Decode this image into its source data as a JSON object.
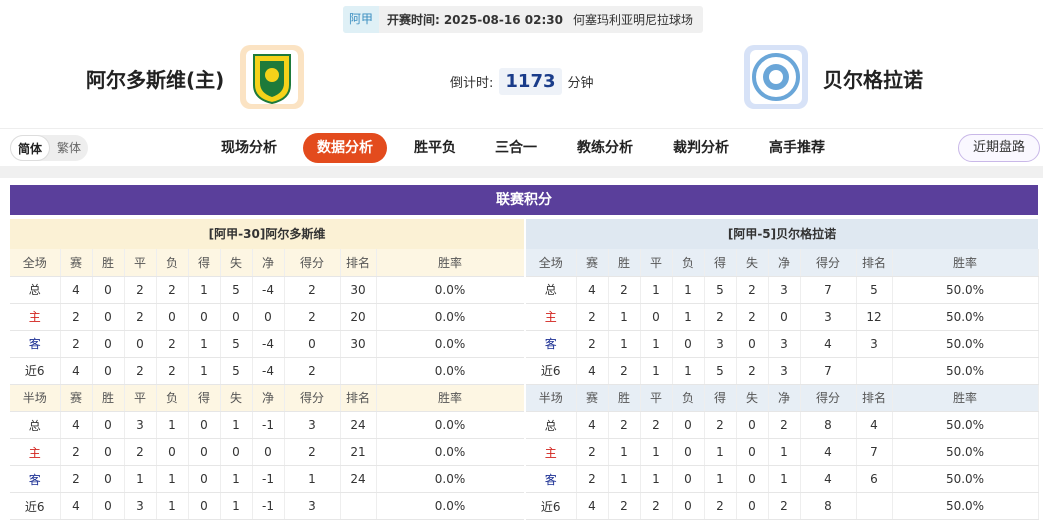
{
  "match": {
    "league": "阿甲",
    "time_label": "开赛时间:",
    "time": "2025-08-16 02:30",
    "venue": "何塞玛利亚明尼拉球场"
  },
  "home": {
    "name": "阿尔多斯维(主)"
  },
  "away": {
    "name": "贝尔格拉诺"
  },
  "countdown": {
    "label": "倒计时:",
    "value": "1173",
    "unit": "分钟"
  },
  "lang": [
    "简体",
    "繁体"
  ],
  "tabs": [
    "现场分析",
    "数据分析",
    "胜平负",
    "三合一",
    "教练分析",
    "裁判分析",
    "高手推荐"
  ],
  "active_tab": 1,
  "recent_button": "近期盘路",
  "standings": {
    "title": "联赛积分",
    "teams": [
      {
        "title": "[阿甲-30]阿尔多斯维",
        "tables": [
          {
            "header": [
              "全场",
              "赛",
              "胜",
              "平",
              "负",
              "得",
              "失",
              "净",
              "得分",
              "排名",
              "胜率"
            ],
            "rows": [
              [
                "总",
                4,
                0,
                2,
                2,
                1,
                5,
                -4,
                2,
                30,
                "0.0%"
              ],
              [
                "主",
                2,
                0,
                2,
                0,
                0,
                0,
                0,
                2,
                20,
                "0.0%"
              ],
              [
                "客",
                2,
                0,
                0,
                2,
                1,
                5,
                -4,
                0,
                30,
                "0.0%"
              ],
              [
                "近6",
                4,
                0,
                2,
                2,
                1,
                5,
                -4,
                2,
                null,
                "0.0%"
              ]
            ]
          },
          {
            "header": [
              "半场",
              "赛",
              "胜",
              "平",
              "负",
              "得",
              "失",
              "净",
              "得分",
              "排名",
              "胜率"
            ],
            "rows": [
              [
                "总",
                4,
                0,
                3,
                1,
                0,
                1,
                -1,
                3,
                24,
                "0.0%"
              ],
              [
                "主",
                2,
                0,
                2,
                0,
                0,
                0,
                0,
                2,
                21,
                "0.0%"
              ],
              [
                "客",
                2,
                0,
                1,
                1,
                0,
                1,
                -1,
                1,
                24,
                "0.0%"
              ],
              [
                "近6",
                4,
                0,
                3,
                1,
                0,
                1,
                -1,
                3,
                null,
                "0.0%"
              ]
            ]
          }
        ]
      },
      {
        "title": "[阿甲-5]贝尔格拉诺",
        "tables": [
          {
            "header": [
              "全场",
              "赛",
              "胜",
              "平",
              "负",
              "得",
              "失",
              "净",
              "得分",
              "排名",
              "胜率"
            ],
            "rows": [
              [
                "总",
                4,
                2,
                1,
                1,
                5,
                2,
                3,
                7,
                5,
                "50.0%"
              ],
              [
                "主",
                2,
                1,
                0,
                1,
                2,
                2,
                0,
                3,
                12,
                "50.0%"
              ],
              [
                "客",
                2,
                1,
                1,
                0,
                3,
                0,
                3,
                4,
                3,
                "50.0%"
              ],
              [
                "近6",
                4,
                2,
                1,
                1,
                5,
                2,
                3,
                7,
                null,
                "50.0%"
              ]
            ]
          },
          {
            "header": [
              "半场",
              "赛",
              "胜",
              "平",
              "负",
              "得",
              "失",
              "净",
              "得分",
              "排名",
              "胜率"
            ],
            "rows": [
              [
                "总",
                4,
                2,
                2,
                0,
                2,
                0,
                2,
                8,
                4,
                "50.0%"
              ],
              [
                "主",
                2,
                1,
                1,
                0,
                1,
                0,
                1,
                4,
                7,
                "50.0%"
              ],
              [
                "客",
                2,
                1,
                1,
                0,
                1,
                0,
                1,
                4,
                6,
                "50.0%"
              ],
              [
                "近6",
                4,
                2,
                2,
                0,
                2,
                0,
                2,
                8,
                null,
                "50.0%"
              ]
            ]
          }
        ]
      }
    ]
  }
}
